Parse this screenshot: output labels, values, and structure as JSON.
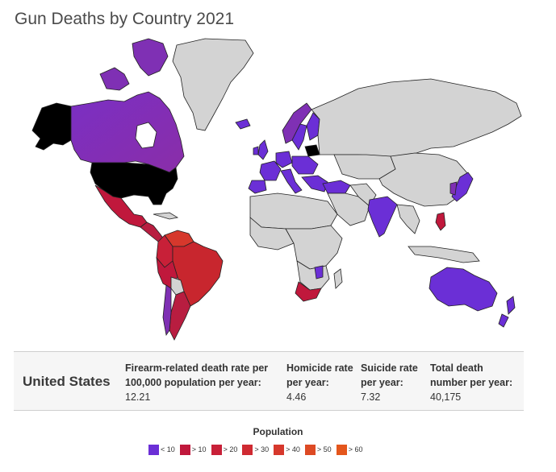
{
  "title": "Gun Deaths by Country 2021",
  "info": {
    "country": "United States",
    "stats": [
      {
        "label": "Firearm-related death rate per 100,000 population per year:",
        "value": "12.21"
      },
      {
        "label": "Homicide rate per year:",
        "value": "4.46"
      },
      {
        "label": "Suicide rate per year:",
        "value": "7.32"
      },
      {
        "label": "Total death number per year:",
        "value": "40,175"
      }
    ]
  },
  "legend": {
    "title": "Population",
    "items": [
      {
        "label": "< 10",
        "color": "#6b2fd6"
      },
      {
        "label": "> 10",
        "color": "#c0183c"
      },
      {
        "label": "> 20",
        "color": "#c82038"
      },
      {
        "label": "> 30",
        "color": "#cf2a32"
      },
      {
        "label": "> 40",
        "color": "#d6382c"
      },
      {
        "label": "> 50",
        "color": "#dd4a24"
      },
      {
        "label": "> 60",
        "color": "#e4561c"
      }
    ]
  },
  "map": {
    "selected_color": "#000000",
    "no_data_color": "#d3d3d3",
    "selected_country": "United States"
  }
}
